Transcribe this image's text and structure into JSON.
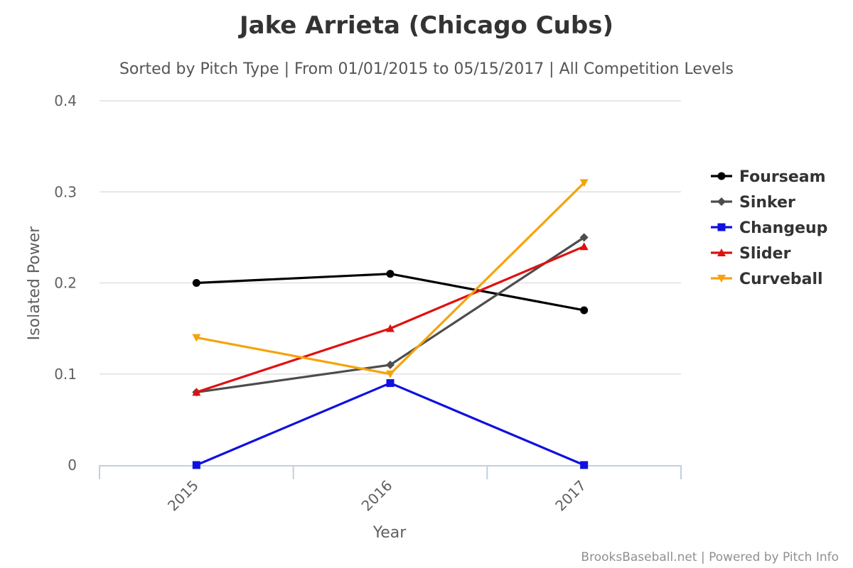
{
  "chart_data": {
    "type": "line",
    "title": "Jake Arrieta (Chicago Cubs)",
    "subtitle": "Sorted by Pitch Type | From 01/01/2015 to 05/15/2017 | All Competition Levels",
    "xlabel": "Year",
    "ylabel": "Isolated Power",
    "categories": [
      "2015",
      "2016",
      "2017"
    ],
    "ylim": [
      0,
      0.4
    ],
    "yticks": [
      "0",
      "0.1",
      "0.2",
      "0.3",
      "0.4"
    ],
    "grid": true,
    "legend_position": "right",
    "series": [
      {
        "name": "Fourseam",
        "values": [
          0.2,
          0.21,
          0.17
        ],
        "color": "#000000",
        "marker": "circle"
      },
      {
        "name": "Sinker",
        "values": [
          0.08,
          0.11,
          0.25
        ],
        "color": "#4d4d4d",
        "marker": "diamond"
      },
      {
        "name": "Changeup",
        "values": [
          0.0,
          0.09,
          0.0
        ],
        "color": "#1010e0",
        "marker": "square"
      },
      {
        "name": "Slider",
        "values": [
          0.08,
          0.15,
          0.24
        ],
        "color": "#e01010",
        "marker": "triangle"
      },
      {
        "name": "Curveball",
        "values": [
          0.14,
          0.1,
          0.31
        ],
        "color": "#f5a30a",
        "marker": "triangle-down"
      }
    ],
    "credits": "BrooksBaseball.net | Powered by Pitch Info"
  }
}
